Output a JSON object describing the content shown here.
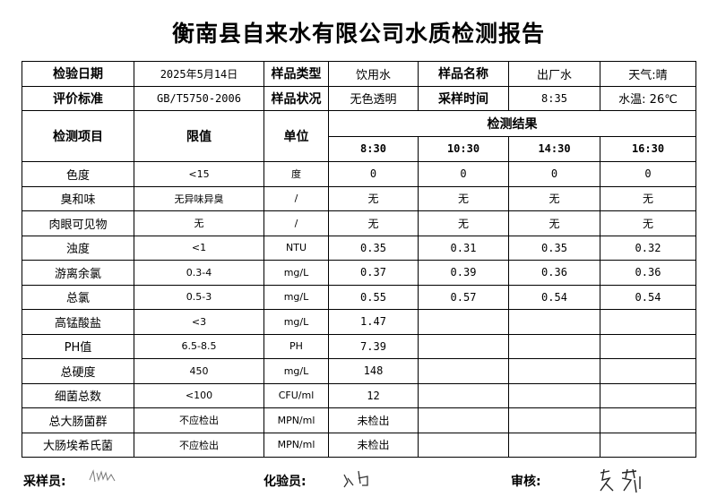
{
  "title": "衡南县自来水有限公司水质检测报告",
  "info": {
    "row1": [
      "检验日期",
      "2025年5月14日",
      "样品类型",
      "饮用水",
      "样品名称",
      "出厂水",
      "天气:晴"
    ],
    "row2": [
      "评价标准",
      "GB/T5750-2006",
      "样品状况",
      "无色透明",
      "采样时间",
      "8:35",
      "水温: 26℃"
    ]
  },
  "header": {
    "item": "检测项目",
    "limit": "限值",
    "unit": "单位",
    "results": "检测结果",
    "times": [
      "8:30",
      "10:30",
      "14:30",
      "16:30"
    ]
  },
  "rows": [
    {
      "item": "色度",
      "limit": "<15",
      "unit": "度",
      "values": [
        "0",
        "0",
        "0",
        "0"
      ]
    },
    {
      "item": "臭和味",
      "limit": "无异味异臭",
      "unit": "/",
      "values": [
        "无",
        "无",
        "无",
        "无"
      ]
    },
    {
      "item": "肉眼可见物",
      "limit": "无",
      "unit": "/",
      "values": [
        "无",
        "无",
        "无",
        "无"
      ]
    },
    {
      "item": "浊度",
      "limit": "<1",
      "unit": "NTU",
      "values": [
        "0.35",
        "0.31",
        "0.35",
        "0.32"
      ]
    },
    {
      "item": "游离余氯",
      "limit": "0.3-4",
      "unit": "mg/L",
      "values": [
        "0.37",
        "0.39",
        "0.36",
        "0.36"
      ]
    },
    {
      "item": "总氯",
      "limit": "0.5-3",
      "unit": "mg/L",
      "values": [
        "0.55",
        "0.57",
        "0.54",
        "0.54"
      ]
    },
    {
      "item": "高锰酸盐",
      "limit": "<3",
      "unit": "mg/L",
      "values": [
        "1.47",
        "",
        "",
        ""
      ]
    },
    {
      "item": "PH值",
      "limit": "6.5-8.5",
      "unit": "PH",
      "values": [
        "7.39",
        "",
        "",
        ""
      ]
    },
    {
      "item": "总硬度",
      "limit": "450",
      "unit": "mg/L",
      "values": [
        "148",
        "",
        "",
        ""
      ]
    },
    {
      "item": "细菌总数",
      "limit": "<100",
      "unit": "CFU/ml",
      "values": [
        "12",
        "",
        "",
        ""
      ]
    },
    {
      "item": "总大肠菌群",
      "limit": "不应检出",
      "unit": "MPN/ml",
      "values": [
        "未检出",
        "",
        "",
        ""
      ]
    },
    {
      "item": "大肠埃希氏菌",
      "limit": "不应检出",
      "unit": "MPN/ml",
      "values": [
        "未检出",
        "",
        "",
        ""
      ]
    }
  ],
  "footer": {
    "sampler_label": "采样员:",
    "tester_label": "化验员:",
    "reviewer_label": "审核:"
  }
}
